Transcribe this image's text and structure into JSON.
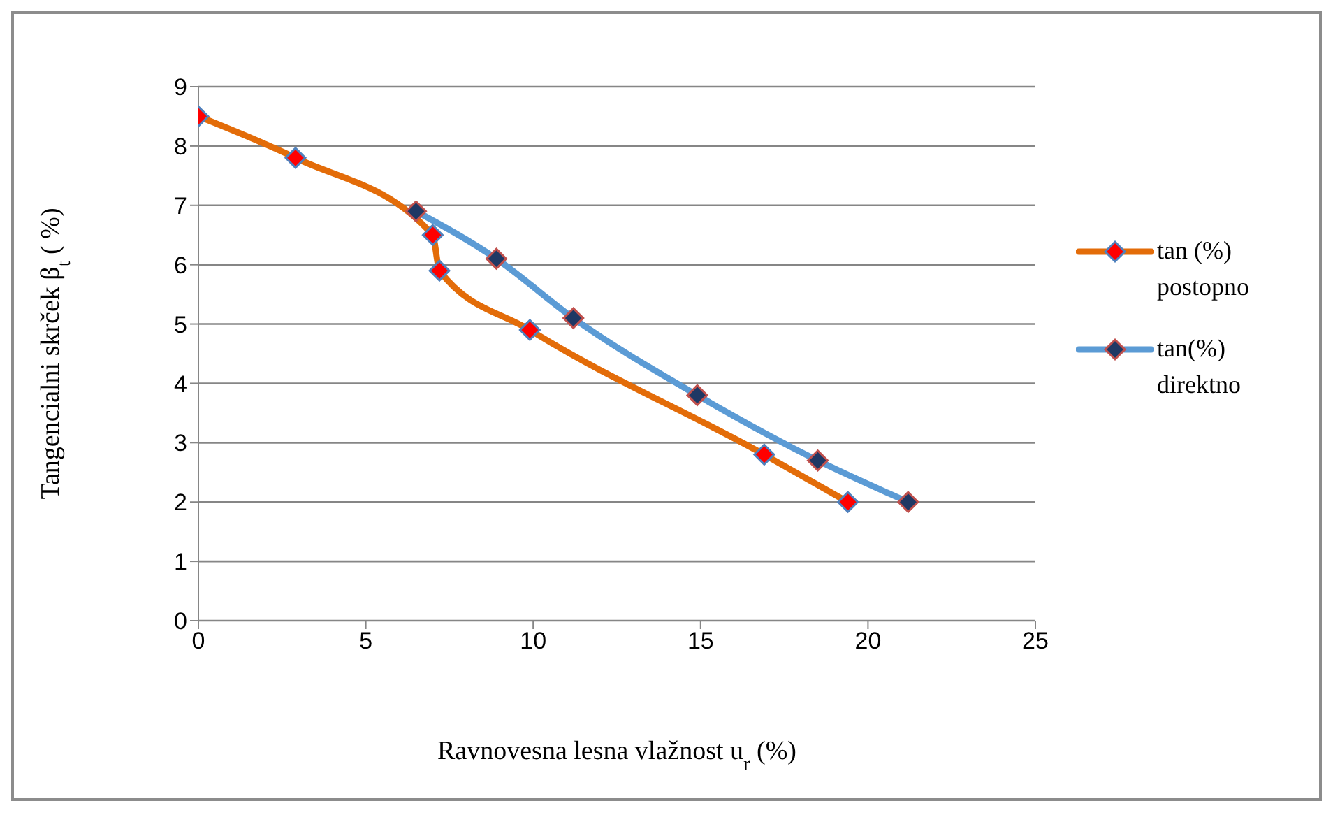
{
  "chart_data": {
    "type": "line",
    "xlabel": "Ravnovesna lesna vlažnost u$_{r}$(%)",
    "ylabel": "Tangencialni skrček β$_{t}$ ( %)",
    "series": [
      {
        "name": "tan (%) postopno",
        "color": "#e36c09",
        "x": [
          0,
          2.9,
          7.0,
          7.2,
          9.9,
          16.9,
          19.4
        ],
        "values": [
          8.5,
          7.8,
          6.5,
          5.9,
          4.9,
          2.8,
          2.0
        ]
      },
      {
        "name": "tan(%) direktno",
        "color": "#5b9bd5",
        "x": [
          6.5,
          8.9,
          11.2,
          14.9,
          18.5,
          21.2
        ],
        "values": [
          6.9,
          6.1,
          5.1,
          3.8,
          2.7,
          2.0
        ]
      }
    ],
    "xlim": [
      0,
      25
    ],
    "xticks": [
      0,
      5,
      10,
      15,
      20,
      25
    ],
    "ylim": [
      0,
      9
    ],
    "yticks": [
      0,
      1,
      2,
      3,
      4,
      5,
      6,
      7,
      8,
      9
    ],
    "grid": "y",
    "legend": "right",
    "marker": "diamond",
    "line_style": "solid"
  }
}
